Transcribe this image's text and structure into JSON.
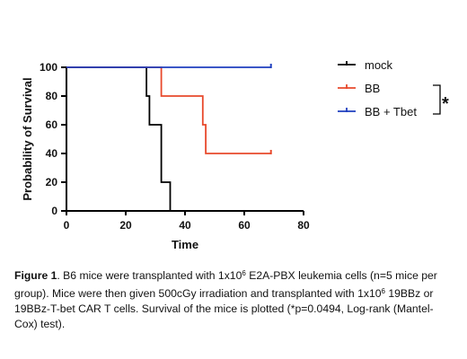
{
  "chart_data": {
    "type": "line",
    "subtype": "kaplan-meier-step",
    "xlabel": "Time",
    "ylabel": "Probability of Survival",
    "xlim": [
      0,
      80
    ],
    "ylim": [
      0,
      100
    ],
    "xticks": [
      0,
      20,
      40,
      60,
      80
    ],
    "yticks": [
      0,
      20,
      40,
      60,
      80,
      100
    ],
    "grid": false,
    "legend_position": "right",
    "series": [
      {
        "name": "mock",
        "color": "#000000",
        "steps": [
          [
            0,
            100
          ],
          [
            27,
            80
          ],
          [
            28,
            60
          ],
          [
            32,
            20
          ],
          [
            35,
            0
          ]
        ],
        "end_x": 35,
        "censored": []
      },
      {
        "name": "BB",
        "color": "#e8492c",
        "steps": [
          [
            0,
            100
          ],
          [
            32,
            80
          ],
          [
            46,
            60
          ],
          [
            47,
            40
          ]
        ],
        "end_x": 69,
        "censored": [
          [
            69,
            40
          ]
        ]
      },
      {
        "name": "BB + Tbet",
        "color": "#1f3fbf",
        "steps": [
          [
            0,
            100
          ]
        ],
        "end_x": 69,
        "censored": [
          [
            69,
            100
          ]
        ]
      }
    ],
    "annotation": "*"
  },
  "caption": {
    "label": "Figure 1",
    "text_a": ". B6 mice were transplanted with 1x10",
    "sup_a": "6",
    "text_b": " E2A-PBX leukemia cells (n=5 mice per group). Mice were then given 500cGy irradiation and transplanted with 1x10",
    "sup_b": "6",
    "text_c": "  19BBz or 19BBz-T-bet CAR T cells. Survival of the mice is plotted (*p=0.0494, Log-rank (Mantel-Cox) test)."
  }
}
